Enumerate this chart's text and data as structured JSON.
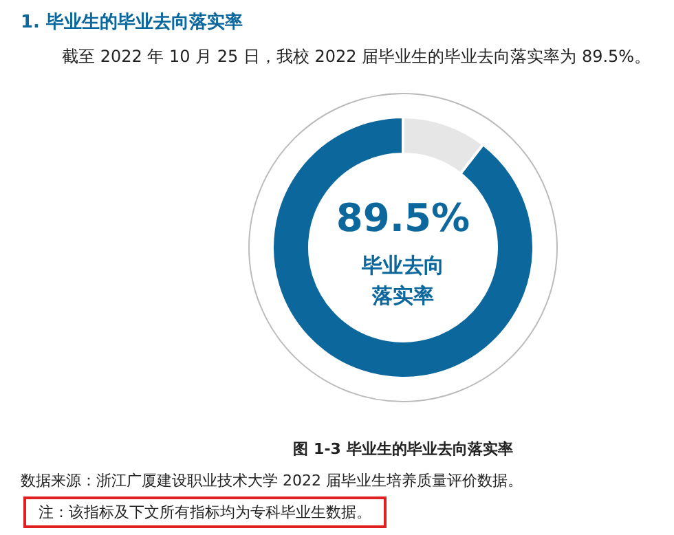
{
  "chart_data": {
    "type": "donut",
    "title": "1. 毕业生的毕业去向落实率",
    "subtitle": "截至 2022 年 10 月 25 日，我校 2022 届毕业生的毕业去向落实率为 89.5%。",
    "categories": [
      null,
      null
    ],
    "values": [
      89.5,
      10.5
    ],
    "colors": [
      "#0b679c",
      "#e6e6e6"
    ],
    "value_labels": [
      "89.5%",
      null
    ],
    "annotations": [
      "毕业去向落实率",
      "图 1-3    毕业生的毕业去向落实率",
      "数据来源：浙江广厦建设职业技术大学 2022 届毕业生培养质量评价数据。",
      "注：该指标及下文所有指标均为专科毕业生数据。"
    ]
  }
}
